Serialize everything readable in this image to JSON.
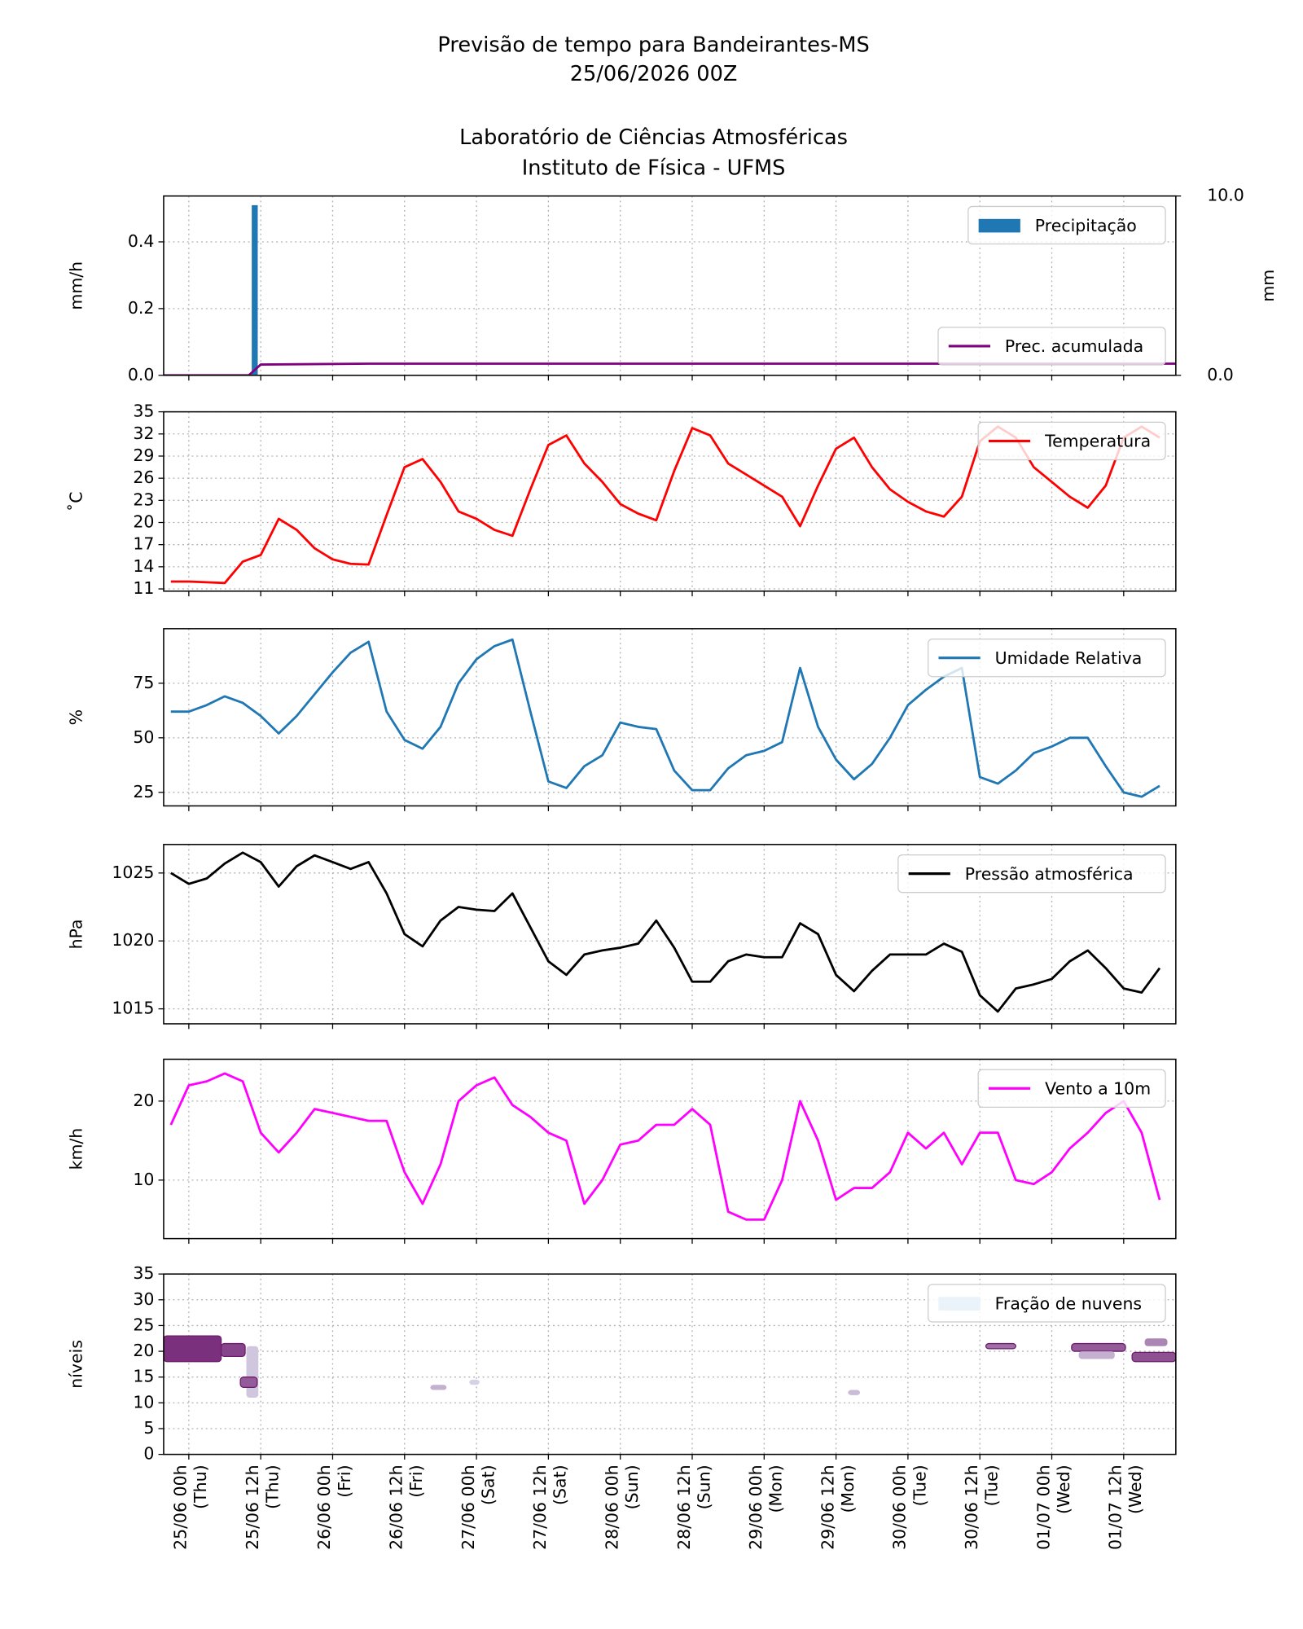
{
  "header": {
    "lines": [
      "Previsão de tempo para Bandeirantes-MS",
      "25/06/2026 00Z",
      "Laboratório de Ciências Atmosféricas",
      "Instituto de Física - UFMS"
    ]
  },
  "time_axis": {
    "xlim": [
      -4.2,
      164.7
    ],
    "x": [
      -3,
      0,
      3,
      6,
      9,
      12,
      15,
      18,
      21,
      24,
      27,
      30,
      33,
      36,
      39,
      42,
      45,
      48,
      51,
      54,
      57,
      60,
      63,
      66,
      69,
      72,
      75,
      78,
      81,
      84,
      87,
      90,
      93,
      96,
      99,
      102,
      105,
      108,
      111,
      114,
      117,
      120,
      123,
      126,
      129,
      132,
      135,
      138,
      141,
      144,
      147,
      150,
      153,
      156,
      159,
      162
    ],
    "xticks": [
      {
        "value": 0,
        "label": "25/06 00h\n(Thu)"
      },
      {
        "value": 12,
        "label": "25/06 12h\n(Thu)"
      },
      {
        "value": 24,
        "label": "26/06 00h\n(Fri)"
      },
      {
        "value": 36,
        "label": "26/06 12h\n(Fri)"
      },
      {
        "value": 48,
        "label": "27/06 00h\n(Sat)"
      },
      {
        "value": 60,
        "label": "27/06 12h\n(Sat)"
      },
      {
        "value": 72,
        "label": "28/06 00h\n(Sun)"
      },
      {
        "value": 84,
        "label": "28/06 12h\n(Sun)"
      },
      {
        "value": 96,
        "label": "29/06 00h\n(Mon)"
      },
      {
        "value": 108,
        "label": "29/06 12h\n(Mon)"
      },
      {
        "value": 120,
        "label": "30/06 00h\n(Tue)"
      },
      {
        "value": 132,
        "label": "30/06 12h\n(Tue)"
      },
      {
        "value": 144,
        "label": "01/07 00h\n(Wed)"
      },
      {
        "value": 156,
        "label": "01/07 12h\n(Wed)"
      }
    ]
  },
  "chart_data": [
    {
      "type": "bar",
      "ylabel": "mm/h",
      "y2label": "mm",
      "grid": true,
      "ylim": [
        0,
        0.5375
      ],
      "yticks": [
        {
          "value": 0,
          "label": "0.0"
        },
        {
          "value": 0.2,
          "label": "0.2"
        },
        {
          "value": 0.4,
          "label": "0.4"
        }
      ],
      "y2lim": [
        0,
        10
      ],
      "y2ticks": [
        {
          "value": 0,
          "label": "0.0"
        },
        {
          "value": 10,
          "label": "10.0"
        }
      ],
      "series": [
        {
          "name": "Precipitação",
          "color": "#1f77b4",
          "legend_loc": "upper right",
          "x": [
            11
          ],
          "values": [
            0.51
          ]
        },
        {
          "name": "Prec. acumulada",
          "color": "#800080",
          "axis": "y2",
          "legend_loc": "lower right",
          "x": [
            -4.2,
            10,
            12,
            30,
            164.7
          ],
          "values": [
            0,
            0,
            0.6,
            0.65,
            0.65
          ]
        }
      ]
    },
    {
      "type": "line",
      "ylabel": "˚C",
      "grid": true,
      "legend_loc": "upper right",
      "ylim": [
        10.7,
        35
      ],
      "yticks": [
        11,
        14,
        17,
        20,
        23,
        26,
        29,
        32,
        35
      ],
      "series": [
        {
          "name": "Temperatura",
          "color": "#ff0000",
          "values": [
            12.0,
            12.0,
            11.9,
            11.8,
            14.7,
            15.6,
            20.5,
            19.0,
            16.5,
            15.0,
            14.4,
            14.3,
            21,
            27.5,
            28.6,
            25.5,
            21.5,
            20.5,
            19.0,
            18.2,
            24.5,
            30.5,
            31.8,
            28,
            25.5,
            22.5,
            21.2,
            20.3,
            27,
            32.8,
            31.8,
            28,
            26.5,
            25,
            23.5,
            19.5,
            25,
            30,
            31.5,
            27.5,
            24.5,
            22.8,
            21.5,
            20.8,
            23.5,
            31,
            33,
            31.5,
            27.5,
            25.5,
            23.5,
            22,
            25,
            31.5,
            33,
            31.5
          ]
        }
      ]
    },
    {
      "type": "line",
      "ylabel": "%",
      "grid": true,
      "legend_loc": "upper right",
      "ylim": [
        18.8,
        100
      ],
      "yticks": [
        25,
        50,
        75
      ],
      "series": [
        {
          "name": "Umidade Relativa",
          "color": "#1f77b4",
          "values": [
            62,
            62,
            65,
            69,
            66,
            60,
            52,
            60,
            70,
            80,
            89,
            94,
            62,
            49,
            45,
            55,
            75,
            86,
            92,
            95,
            62,
            30,
            27,
            37,
            42,
            57,
            55,
            54,
            35,
            26,
            26,
            36,
            42,
            44,
            48,
            82,
            55,
            40,
            31,
            38,
            50,
            65,
            72,
            78,
            82,
            32,
            29,
            35,
            43,
            46,
            50,
            50,
            37,
            25,
            23,
            28
          ]
        }
      ]
    },
    {
      "type": "line",
      "ylabel": "hPa",
      "grid": true,
      "legend_loc": "upper right",
      "ylim": [
        1013.9,
        1027.1
      ],
      "yticks": [
        1015,
        1020,
        1025
      ],
      "series": [
        {
          "name": "Pressão atmosférica",
          "color": "#000000",
          "values": [
            1025.0,
            1024.2,
            1024.6,
            1025.7,
            1026.5,
            1025.8,
            1024.0,
            1025.5,
            1026.3,
            1025.8,
            1025.3,
            1025.8,
            1023.5,
            1020.5,
            1019.6,
            1021.5,
            1022.5,
            1022.3,
            1022.2,
            1023.5,
            1021.0,
            1018.5,
            1017.5,
            1019.0,
            1019.3,
            1019.5,
            1019.8,
            1021.5,
            1019.5,
            1017.0,
            1017.0,
            1018.5,
            1019.0,
            1018.8,
            1018.8,
            1021.3,
            1020.5,
            1017.5,
            1016.3,
            1017.8,
            1019.0,
            1019.0,
            1019.0,
            1019.8,
            1019.2,
            1016.0,
            1014.8,
            1016.5,
            1016.8,
            1017.2,
            1018.5,
            1019.3,
            1018.0,
            1016.5,
            1016.2,
            1018.0
          ]
        }
      ]
    },
    {
      "type": "line",
      "ylabel": "km/h",
      "grid": true,
      "legend_loc": "upper right",
      "ylim": [
        2.6,
        25.3
      ],
      "yticks": [
        10,
        20
      ],
      "series": [
        {
          "name": "Vento a 10m",
          "color": "#ff00ff",
          "values": [
            17,
            22,
            22.5,
            23.5,
            22.5,
            16,
            13.5,
            16,
            19,
            18.5,
            18,
            17.5,
            17.5,
            11,
            7,
            12,
            20,
            22,
            23,
            19.5,
            18,
            16,
            15,
            7,
            10,
            14.5,
            15,
            17,
            17,
            19,
            17,
            6,
            5,
            5,
            10,
            20,
            15,
            7.5,
            9,
            9,
            11,
            16,
            14,
            16,
            12,
            16,
            16,
            10,
            9.5,
            11,
            14,
            16,
            18.5,
            20,
            16,
            7.5
          ]
        }
      ]
    },
    {
      "type": "contour",
      "ylabel": "níveis",
      "grid": true,
      "legend_loc": "upper right",
      "ylim": [
        0,
        35
      ],
      "yticks": [
        0,
        5,
        10,
        15,
        20,
        25,
        30,
        35
      ],
      "cmap": [
        "#e8f1f9",
        "#6e1a6e"
      ],
      "series": [
        {
          "name": "Fração de nuvens",
          "color": "#eaf2fa"
        }
      ],
      "patches": [
        {
          "xrange": [
            -4.2,
            5.4
          ],
          "levels": [
            18,
            23
          ],
          "value": 0.9
        },
        {
          "xrange": [
            5.4,
            9.4
          ],
          "levels": [
            19,
            21.5
          ],
          "value": 0.8
        },
        {
          "xrange": [
            9.6,
            11.6
          ],
          "levels": [
            11,
            21
          ],
          "value": 0.2
        },
        {
          "xrange": [
            8.6,
            11.4
          ],
          "levels": [
            13,
            15
          ],
          "value": 0.7
        },
        {
          "xrange": [
            40.3,
            43
          ],
          "levels": [
            12.5,
            13.5
          ],
          "value": 0.3
        },
        {
          "xrange": [
            46.8,
            48.5
          ],
          "levels": [
            13.5,
            14.5
          ],
          "value": 0.15
        },
        {
          "xrange": [
            110,
            112
          ],
          "levels": [
            11.5,
            12.5
          ],
          "value": 0.25
        },
        {
          "xrange": [
            133,
            138
          ],
          "levels": [
            20.5,
            21.5
          ],
          "value": 0.6
        },
        {
          "xrange": [
            147.3,
            156.3
          ],
          "levels": [
            20,
            21.5
          ],
          "value": 0.7
        },
        {
          "xrange": [
            148.5,
            154.5
          ],
          "levels": [
            18.5,
            20
          ],
          "value": 0.3
        },
        {
          "xrange": [
            157.4,
            164.7
          ],
          "levels": [
            18,
            19.8
          ],
          "value": 0.75
        },
        {
          "xrange": [
            159.5,
            163.3
          ],
          "levels": [
            21,
            22.5
          ],
          "value": 0.5
        }
      ]
    }
  ]
}
